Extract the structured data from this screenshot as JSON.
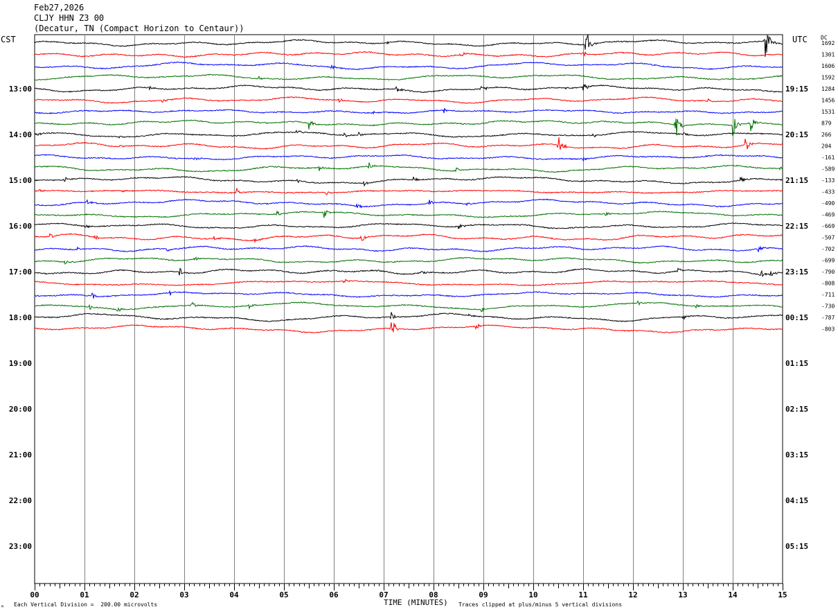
{
  "header": {
    "date": "Feb27,2026",
    "station": "CLJY HHN Z3 00",
    "location": "(Decatur, TN (Compact Horizon to Centaur))",
    "left_zone": "CST",
    "right_zone": "UTC",
    "dc_label": "DC"
  },
  "footer": {
    "scale_note": "Each Vertical Division =  200.00 microvolts",
    "xlabel": "TIME (MINUTES)",
    "clip_note": "Traces clipped at plus/minus 5 vertical divisions",
    "corner_mark": "ᴹ"
  },
  "colors": {
    "trace_cycle": [
      "#000000",
      "#ff0000",
      "#0000ff",
      "#007000"
    ],
    "grid": "#808080"
  },
  "chart_data": {
    "type": "line",
    "xlabel": "TIME (MINUTES)",
    "x_ticks": [
      "00",
      "01",
      "02",
      "03",
      "04",
      "05",
      "06",
      "07",
      "08",
      "09",
      "10",
      "11",
      "12",
      "13",
      "14",
      "15"
    ],
    "xlim": [
      0,
      15
    ],
    "left_hour_labels": [
      "13:00",
      "14:00",
      "15:00",
      "16:00",
      "17:00",
      "18:00",
      "19:00",
      "20:00",
      "21:00",
      "22:00",
      "23:00"
    ],
    "right_hour_labels": [
      "19:15",
      "20:15",
      "21:15",
      "22:15",
      "23:15",
      "00:15",
      "01:15",
      "02:15",
      "03:15",
      "04:15",
      "05:15"
    ],
    "dc_offsets": [
      "1692",
      "1301",
      "1606",
      "1592",
      "1284",
      "1456",
      "1531",
      "879",
      "266",
      "204",
      "-161",
      "-589",
      "-133",
      "-433",
      "-490",
      "-469",
      "-669",
      "-507",
      "-702",
      "-699",
      "-790",
      "-808",
      "-711",
      "-730",
      "-787",
      "-803"
    ],
    "events": [
      {
        "trace": 0,
        "minute": 11.05,
        "amp": 28
      },
      {
        "trace": 0,
        "minute": 14.65,
        "amp": 30
      },
      {
        "trace": 0,
        "minute": 7.05,
        "amp": 3
      },
      {
        "trace": 1,
        "minute": 8.55,
        "amp": 5
      },
      {
        "trace": 1,
        "minute": 11.0,
        "amp": 6
      },
      {
        "trace": 2,
        "minute": 5.95,
        "amp": 4
      },
      {
        "trace": 3,
        "minute": 4.5,
        "amp": 3
      },
      {
        "trace": 3,
        "minute": 14.9,
        "amp": 3
      },
      {
        "trace": 4,
        "minute": 2.3,
        "amp": 3
      },
      {
        "trace": 4,
        "minute": 7.25,
        "amp": 5
      },
      {
        "trace": 4,
        "minute": 8.95,
        "amp": 12
      },
      {
        "trace": 4,
        "minute": 10.65,
        "amp": 3
      },
      {
        "trace": 4,
        "minute": 11.0,
        "amp": 8
      },
      {
        "trace": 5,
        "minute": 2.55,
        "amp": 5
      },
      {
        "trace": 5,
        "minute": 6.1,
        "amp": 4
      },
      {
        "trace": 5,
        "minute": 13.5,
        "amp": 3
      },
      {
        "trace": 6,
        "minute": 6.75,
        "amp": 4
      },
      {
        "trace": 6,
        "minute": 8.2,
        "amp": 4
      },
      {
        "trace": 7,
        "minute": 5.5,
        "amp": 12
      },
      {
        "trace": 7,
        "minute": 12.85,
        "amp": 22
      },
      {
        "trace": 7,
        "minute": 14.0,
        "amp": 18
      },
      {
        "trace": 7,
        "minute": 14.35,
        "amp": 16
      },
      {
        "trace": 8,
        "minute": 0.05,
        "amp": 5
      },
      {
        "trace": 8,
        "minute": 1.7,
        "amp": 4
      },
      {
        "trace": 8,
        "minute": 5.25,
        "amp": 5
      },
      {
        "trace": 8,
        "minute": 6.2,
        "amp": 4
      },
      {
        "trace": 8,
        "minute": 6.5,
        "amp": 4
      },
      {
        "trace": 8,
        "minute": 11.2,
        "amp": 4
      },
      {
        "trace": 8,
        "minute": 13.0,
        "amp": 5
      },
      {
        "trace": 9,
        "minute": 1.7,
        "amp": 4
      },
      {
        "trace": 9,
        "minute": 10.5,
        "amp": 20
      },
      {
        "trace": 9,
        "minute": 14.25,
        "amp": 14
      },
      {
        "trace": 10,
        "minute": 3.2,
        "amp": 5
      },
      {
        "trace": 10,
        "minute": 11.0,
        "amp": 3
      },
      {
        "trace": 11,
        "minute": 5.7,
        "amp": 5
      },
      {
        "trace": 11,
        "minute": 6.7,
        "amp": 6
      },
      {
        "trace": 11,
        "minute": 8.45,
        "amp": 6
      },
      {
        "trace": 11,
        "minute": 14.95,
        "amp": 4
      },
      {
        "trace": 12,
        "minute": 0.6,
        "amp": 5
      },
      {
        "trace": 12,
        "minute": 5.25,
        "amp": 4
      },
      {
        "trace": 12,
        "minute": 6.6,
        "amp": 4
      },
      {
        "trace": 12,
        "minute": 7.6,
        "amp": 6
      },
      {
        "trace": 12,
        "minute": 14.15,
        "amp": 6
      },
      {
        "trace": 13,
        "minute": 0.1,
        "amp": 3
      },
      {
        "trace": 13,
        "minute": 1.75,
        "amp": 3
      },
      {
        "trace": 13,
        "minute": 4.05,
        "amp": 6
      },
      {
        "trace": 13,
        "minute": 5.85,
        "amp": 4
      },
      {
        "trace": 14,
        "minute": 1.05,
        "amp": 5
      },
      {
        "trace": 14,
        "minute": 6.45,
        "amp": 6
      },
      {
        "trace": 14,
        "minute": 7.9,
        "amp": 7
      },
      {
        "trace": 14,
        "minute": 8.65,
        "amp": 5
      },
      {
        "trace": 15,
        "minute": 4.85,
        "amp": 5
      },
      {
        "trace": 15,
        "minute": 5.8,
        "amp": 10
      },
      {
        "trace": 15,
        "minute": 11.45,
        "amp": 6
      },
      {
        "trace": 16,
        "minute": 1.0,
        "amp": 6
      },
      {
        "trace": 16,
        "minute": 8.5,
        "amp": 6
      },
      {
        "trace": 17,
        "minute": 0.3,
        "amp": 5
      },
      {
        "trace": 17,
        "minute": 1.2,
        "amp": 4
      },
      {
        "trace": 17,
        "minute": 3.6,
        "amp": 5
      },
      {
        "trace": 17,
        "minute": 4.4,
        "amp": 4
      },
      {
        "trace": 17,
        "minute": 6.55,
        "amp": 7
      },
      {
        "trace": 18,
        "minute": 0.85,
        "amp": 4
      },
      {
        "trace": 18,
        "minute": 2.65,
        "amp": 4
      },
      {
        "trace": 18,
        "minute": 14.5,
        "amp": 7
      },
      {
        "trace": 19,
        "minute": 0.6,
        "amp": 5
      },
      {
        "trace": 19,
        "minute": 3.2,
        "amp": 4
      },
      {
        "trace": 20,
        "minute": 2.9,
        "amp": 8
      },
      {
        "trace": 20,
        "minute": 6.85,
        "amp": 3
      },
      {
        "trace": 20,
        "minute": 7.75,
        "amp": 6
      },
      {
        "trace": 20,
        "minute": 12.9,
        "amp": 5
      },
      {
        "trace": 20,
        "minute": 14.55,
        "amp": 8
      },
      {
        "trace": 20,
        "minute": 14.75,
        "amp": 5
      },
      {
        "trace": 21,
        "minute": 6.2,
        "amp": 5
      },
      {
        "trace": 22,
        "minute": 1.15,
        "amp": 5
      },
      {
        "trace": 22,
        "minute": 2.7,
        "amp": 6
      },
      {
        "trace": 23,
        "minute": 1.1,
        "amp": 5
      },
      {
        "trace": 23,
        "minute": 1.65,
        "amp": 5
      },
      {
        "trace": 23,
        "minute": 3.15,
        "amp": 5
      },
      {
        "trace": 23,
        "minute": 4.3,
        "amp": 5
      },
      {
        "trace": 23,
        "minute": 8.95,
        "amp": 5
      },
      {
        "trace": 23,
        "minute": 12.1,
        "amp": 5
      },
      {
        "trace": 23,
        "minute": 13.25,
        "amp": 5
      },
      {
        "trace": 24,
        "minute": 7.15,
        "amp": 8
      },
      {
        "trace": 24,
        "minute": 8.7,
        "amp": 4
      },
      {
        "trace": 24,
        "minute": 13.0,
        "amp": 5
      },
      {
        "trace": 25,
        "minute": 7.15,
        "amp": 22
      },
      {
        "trace": 25,
        "minute": 8.85,
        "amp": 6
      }
    ]
  }
}
